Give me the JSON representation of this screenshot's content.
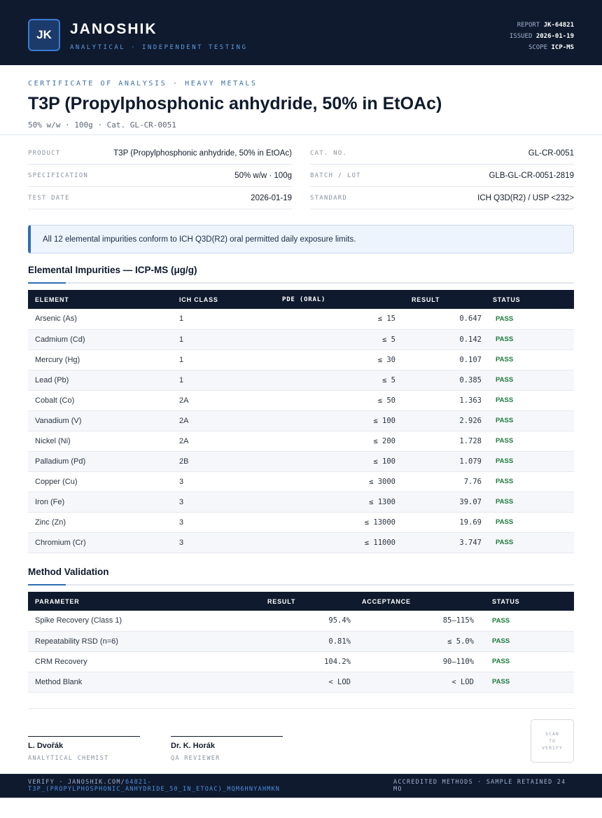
{
  "header": {
    "logo": "JK",
    "brand": "JANOSHIK",
    "tagline": "ANALYTICAL · INDEPENDENT TESTING",
    "report_label": "REPORT",
    "report_value": "JK-64821",
    "issued_label": "ISSUED",
    "issued_value": "2026-01-19",
    "scope_label": "SCOPE",
    "scope_value": "ICP-MS"
  },
  "title_block": {
    "eyebrow": "CERTIFICATE OF ANALYSIS · HEAVY METALS",
    "title": "T3P (Propylphosphonic anhydride, 50% in EtOAc)",
    "subtitle": "50% w/w · 100g  ·  Cat. GL-CR-0051"
  },
  "info": {
    "product_label": "PRODUCT",
    "product_value": "T3P (Propylphosphonic anhydride, 50% in EtOAc)",
    "spec_label": "SPECIFICATION",
    "spec_value": "50% w/w · 100g",
    "date_label": "TEST DATE",
    "date_value": "2026-01-19",
    "cat_label": "CAT. NO.",
    "cat_value": "GL-CR-0051",
    "batch_label": "BATCH / LOT",
    "batch_value": "GLB-GL-CR-0051-2819",
    "standard_label": "STANDARD",
    "standard_value": "ICH Q3D(R2) / USP <232>"
  },
  "notice": "All 12 elemental impurities conform to ICH Q3D(R2) oral permitted daily exposure limits.",
  "impurities": {
    "heading": "Elemental Impurities — ICP-MS (μg/g)",
    "columns": [
      "ELEMENT",
      "ICH CLASS",
      "PDE (ORAL)",
      "RESULT",
      "STATUS"
    ],
    "rows": [
      {
        "element": "Arsenic (As)",
        "cls": "1",
        "pde": "≤ 15",
        "result": "0.647",
        "status": "PASS"
      },
      {
        "element": "Cadmium (Cd)",
        "cls": "1",
        "pde": "≤ 5",
        "result": "0.142",
        "status": "PASS"
      },
      {
        "element": "Mercury (Hg)",
        "cls": "1",
        "pde": "≤ 30",
        "result": "0.107",
        "status": "PASS"
      },
      {
        "element": "Lead (Pb)",
        "cls": "1",
        "pde": "≤ 5",
        "result": "0.385",
        "status": "PASS"
      },
      {
        "element": "Cobalt (Co)",
        "cls": "2A",
        "pde": "≤ 50",
        "result": "1.363",
        "status": "PASS"
      },
      {
        "element": "Vanadium (V)",
        "cls": "2A",
        "pde": "≤ 100",
        "result": "2.926",
        "status": "PASS"
      },
      {
        "element": "Nickel (Ni)",
        "cls": "2A",
        "pde": "≤ 200",
        "result": "1.728",
        "status": "PASS"
      },
      {
        "element": "Palladium (Pd)",
        "cls": "2B",
        "pde": "≤ 100",
        "result": "1.079",
        "status": "PASS"
      },
      {
        "element": "Copper (Cu)",
        "cls": "3",
        "pde": "≤ 3000",
        "result": "7.76",
        "status": "PASS"
      },
      {
        "element": "Iron (Fe)",
        "cls": "3",
        "pde": "≤ 1300",
        "result": "39.07",
        "status": "PASS"
      },
      {
        "element": "Zinc (Zn)",
        "cls": "3",
        "pde": "≤ 13000",
        "result": "19.69",
        "status": "PASS"
      },
      {
        "element": "Chromium (Cr)",
        "cls": "3",
        "pde": "≤ 11000",
        "result": "3.747",
        "status": "PASS"
      }
    ]
  },
  "validation": {
    "heading": "Method Validation",
    "columns": [
      "PARAMETER",
      "RESULT",
      "ACCEPTANCE",
      "STATUS"
    ],
    "rows": [
      {
        "parameter": "Spike Recovery (Class 1)",
        "result": "95.4%",
        "acceptance": "85–115%",
        "status": "PASS"
      },
      {
        "parameter": "Repeatability RSD (n=6)",
        "result": "0.81%",
        "acceptance": "≤ 5.0%",
        "status": "PASS"
      },
      {
        "parameter": "CRM Recovery",
        "result": "104.2%",
        "acceptance": "90–110%",
        "status": "PASS"
      },
      {
        "parameter": "Method Blank",
        "result": "< LOD",
        "acceptance": "< LOD",
        "status": "PASS"
      }
    ]
  },
  "signatures": [
    {
      "name": "L. Dvořák",
      "role": "ANALYTICAL CHEMIST"
    },
    {
      "name": "Dr. K. Horák",
      "role": "QA REVIEWER"
    }
  ],
  "qr_text": "SCAN\nTO\nVERIFY",
  "footer": {
    "verify_prefix": "VERIFY · JANOSHIK.COM/",
    "verify_link": "64821-T3P_(PROPYLPHOSPHONIC_ANHYDRIDE_50_IN_ETOAC)_MQM6HNYAHMKN",
    "right": "ACCREDITED METHODS · SAMPLE RETAINED 24 MO"
  }
}
